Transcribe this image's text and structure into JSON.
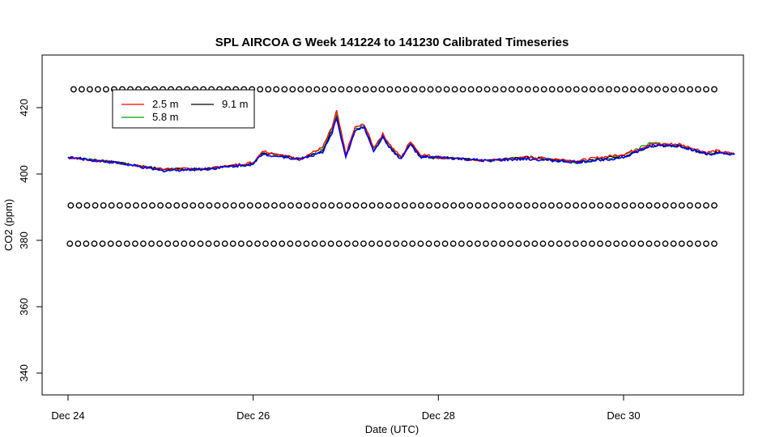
{
  "chart_data": {
    "type": "line",
    "title": "SPL AIRCOA G  Week 141224 to 141230  Calibrated Timeseries",
    "xlabel": "Date (UTC)",
    "ylabel": "CO2 (ppm)",
    "xlim": [
      0,
      7.2
    ],
    "ylim": [
      333,
      436
    ],
    "x_ticks": [
      {
        "value": 0,
        "label": "Dec 24"
      },
      {
        "value": 2,
        "label": "Dec 26"
      },
      {
        "value": 4,
        "label": "Dec 28"
      },
      {
        "value": 6,
        "label": "Dec 30"
      }
    ],
    "y_ticks": [
      340,
      360,
      380,
      400,
      420
    ],
    "grid": false,
    "legend": {
      "placement": "top-left",
      "entries": [
        {
          "label": "2.5 m",
          "color": "#ff0000"
        },
        {
          "label": "9.1 m",
          "color": "#000000"
        },
        {
          "label": "5.8 m",
          "color": "#00a000"
        }
      ]
    },
    "series": [
      {
        "name": "2.5 m",
        "color": "#ff0000",
        "x": [
          0,
          0.5,
          1,
          1.5,
          2,
          2.1,
          2.5,
          2.75,
          2.85,
          2.9,
          3.0,
          3.1,
          3.2,
          3.3,
          3.4,
          3.5,
          3.6,
          3.7,
          3.8,
          3.9,
          4,
          4.5,
          5,
          5.5,
          6,
          6.3,
          6.6,
          6.9,
          7.0,
          7.2
        ],
        "y": [
          405,
          403.5,
          401.5,
          401.5,
          403.5,
          407,
          404.5,
          408,
          414,
          419,
          406,
          414,
          415,
          408,
          412,
          408,
          405,
          410,
          406,
          405.5,
          405,
          404,
          405,
          404,
          406,
          409,
          409,
          406.5,
          407,
          406
        ]
      },
      {
        "name": "9.1 m",
        "color": "#000000",
        "x": [
          0,
          0.5,
          1,
          1.5,
          2,
          2.1,
          2.5,
          2.75,
          2.85,
          2.9,
          3.0,
          3.1,
          3.2,
          3.3,
          3.4,
          3.5,
          3.6,
          3.7,
          3.8,
          3.9,
          4,
          4.5,
          5,
          5.5,
          6,
          6.3,
          6.6,
          6.9,
          7.0,
          7.2
        ],
        "y": [
          405,
          403.5,
          401.5,
          401.5,
          403,
          406.5,
          404.5,
          407,
          413,
          417,
          405,
          413,
          414,
          407,
          411,
          407,
          405,
          409,
          405.5,
          405,
          405,
          404,
          405,
          403.5,
          405.5,
          408.5,
          408.5,
          406,
          406.5,
          406
        ]
      },
      {
        "name": "5.8 m",
        "color": "#00a000",
        "x": [
          0,
          0.5,
          1,
          1.5,
          2,
          2.1,
          2.5,
          2.75,
          2.85,
          2.9,
          3.0,
          3.1,
          3.2,
          3.3,
          3.4,
          3.5,
          3.6,
          3.7,
          3.8,
          3.9,
          4,
          4.5,
          5,
          5.5,
          6,
          6.3,
          6.6,
          6.9,
          7.0,
          7.2
        ],
        "y": [
          405,
          403.5,
          401.5,
          401.5,
          403,
          406.5,
          404.5,
          407.5,
          413.5,
          418,
          405.5,
          413.5,
          414.5,
          407.5,
          411.5,
          407.5,
          405,
          409.5,
          405.5,
          405,
          405,
          404,
          405,
          403.5,
          405.5,
          409.5,
          408.5,
          406,
          406.5,
          406
        ]
      },
      {
        "name": "",
        "color": "#0000ff",
        "x": [
          0,
          0.5,
          1,
          1.5,
          2,
          2.1,
          2.5,
          2.75,
          2.85,
          2.9,
          3.0,
          3.1,
          3.2,
          3.3,
          3.4,
          3.5,
          3.6,
          3.7,
          3.8,
          3.9,
          4,
          4.5,
          5,
          5.5,
          6,
          6.3,
          6.6,
          6.9,
          7.0,
          7.2
        ],
        "y": [
          405,
          403.5,
          401,
          401.5,
          403,
          406,
          404.5,
          406.5,
          412,
          417,
          405,
          413,
          414,
          407,
          411,
          407,
          404.5,
          409,
          405,
          405,
          405,
          404,
          404.5,
          403.5,
          405,
          408.5,
          408.5,
          406,
          406,
          406
        ]
      }
    ],
    "reference_points": [
      {
        "y": 425.5,
        "x_start": 0.06,
        "x_end": 6.98,
        "count": 80
      },
      {
        "y": 390.5,
        "x_start": 0.03,
        "x_end": 6.98,
        "count": 80
      },
      {
        "y": 379,
        "x_start": 0.02,
        "x_end": 6.98,
        "count": 80
      }
    ]
  }
}
